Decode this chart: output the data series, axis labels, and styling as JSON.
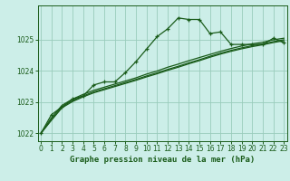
{
  "title": "Graphe pression niveau de la mer (hPa)",
  "bg_color": "#cceee8",
  "grid_color": "#99ccbb",
  "line_color": "#1a5c1a",
  "x_values": [
    0,
    1,
    2,
    3,
    4,
    5,
    6,
    7,
    8,
    9,
    10,
    11,
    12,
    13,
    14,
    15,
    16,
    17,
    18,
    19,
    20,
    21,
    22,
    23
  ],
  "y_main": [
    1022.0,
    1022.6,
    1022.85,
    1023.1,
    1023.2,
    1023.55,
    1023.65,
    1023.65,
    1023.95,
    1024.3,
    1024.7,
    1025.1,
    1025.35,
    1025.7,
    1025.65,
    1025.65,
    1025.2,
    1025.25,
    1024.85,
    1024.85,
    1024.85,
    1024.85,
    1025.05,
    1024.9
  ],
  "y_smooth1": [
    1022.0,
    1022.5,
    1022.9,
    1023.1,
    1023.25,
    1023.38,
    1023.48,
    1023.58,
    1023.68,
    1023.78,
    1023.9,
    1024.0,
    1024.12,
    1024.22,
    1024.33,
    1024.43,
    1024.53,
    1024.63,
    1024.72,
    1024.8,
    1024.87,
    1024.92,
    1025.0,
    1025.05
  ],
  "y_smooth2": [
    1022.0,
    1022.45,
    1022.85,
    1023.05,
    1023.2,
    1023.33,
    1023.43,
    1023.53,
    1023.63,
    1023.73,
    1023.84,
    1023.94,
    1024.05,
    1024.15,
    1024.26,
    1024.36,
    1024.47,
    1024.57,
    1024.66,
    1024.74,
    1024.81,
    1024.87,
    1024.94,
    1025.0
  ],
  "y_smooth3": [
    1022.0,
    1022.42,
    1022.82,
    1023.02,
    1023.17,
    1023.3,
    1023.4,
    1023.5,
    1023.6,
    1023.7,
    1023.81,
    1023.91,
    1024.02,
    1024.12,
    1024.23,
    1024.33,
    1024.44,
    1024.54,
    1024.63,
    1024.71,
    1024.78,
    1024.84,
    1024.91,
    1024.97
  ],
  "ylim": [
    1021.75,
    1026.1
  ],
  "yticks": [
    1022,
    1023,
    1024,
    1025
  ],
  "xlim": [
    -0.3,
    23.3
  ],
  "xticks": [
    0,
    1,
    2,
    3,
    4,
    5,
    6,
    7,
    8,
    9,
    10,
    11,
    12,
    13,
    14,
    15,
    16,
    17,
    18,
    19,
    20,
    21,
    22,
    23
  ],
  "tick_fontsize": 5.5,
  "title_fontsize": 6.5
}
